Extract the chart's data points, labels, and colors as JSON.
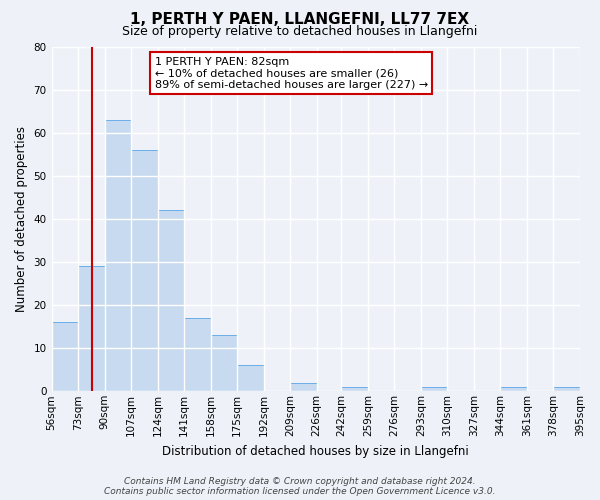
{
  "title": "1, PERTH Y PAEN, LLANGEFNI, LL77 7EX",
  "subtitle": "Size of property relative to detached houses in Llangefni",
  "xlabel": "Distribution of detached houses by size in Llangefni",
  "ylabel": "Number of detached properties",
  "bar_values": [
    16,
    29,
    63,
    56,
    42,
    17,
    13,
    6,
    0,
    2,
    0,
    1,
    0,
    0,
    1,
    0,
    0,
    1,
    0,
    1
  ],
  "bin_edges": [
    56,
    73,
    90,
    107,
    124,
    141,
    158,
    175,
    192,
    209,
    226,
    242,
    259,
    276,
    293,
    310,
    327,
    344,
    361,
    378,
    395
  ],
  "bin_labels": [
    "56sqm",
    "73sqm",
    "90sqm",
    "107sqm",
    "124sqm",
    "141sqm",
    "158sqm",
    "175sqm",
    "192sqm",
    "209sqm",
    "226sqm",
    "242sqm",
    "259sqm",
    "276sqm",
    "293sqm",
    "310sqm",
    "327sqm",
    "344sqm",
    "361sqm",
    "378sqm",
    "395sqm"
  ],
  "bar_color": "#c8daf0",
  "bar_edge_color": "#6aaee8",
  "vline_x": 82,
  "vline_color": "#cc0000",
  "ylim": [
    0,
    80
  ],
  "yticks": [
    0,
    10,
    20,
    30,
    40,
    50,
    60,
    70,
    80
  ],
  "annotation_title": "1 PERTH Y PAEN: 82sqm",
  "annotation_line1": "← 10% of detached houses are smaller (26)",
  "annotation_line2": "89% of semi-detached houses are larger (227) →",
  "annotation_box_color": "#ffffff",
  "annotation_box_edge": "#cc0000",
  "footer1": "Contains HM Land Registry data © Crown copyright and database right 2024.",
  "footer2": "Contains public sector information licensed under the Open Government Licence v3.0.",
  "background_color": "#eef2f8",
  "grid_color": "#ffffff",
  "title_fontsize": 11,
  "subtitle_fontsize": 9,
  "axis_label_fontsize": 8.5,
  "tick_fontsize": 7.5,
  "footer_fontsize": 6.5,
  "annot_fontsize": 8
}
